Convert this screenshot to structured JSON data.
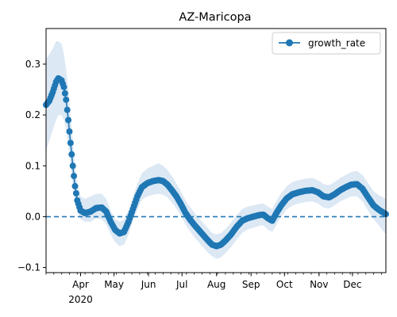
{
  "chart_data": {
    "type": "line",
    "title": "AZ-Maricopa",
    "xlabel": "",
    "ylabel": "",
    "x_range": [
      "2020-03-01",
      "2020-12-31"
    ],
    "ylim": [
      -0.11,
      0.37
    ],
    "y_ticks": [
      -0.1,
      0.0,
      0.1,
      0.2,
      0.3
    ],
    "y_tick_labels": [
      "−0.1",
      "0.0",
      "0.1",
      "0.2",
      "0.3"
    ],
    "x_ticks": [
      {
        "date": "2020-04-01",
        "label": "Apr",
        "sublabel": "2020"
      },
      {
        "date": "2020-05-01",
        "label": "May"
      },
      {
        "date": "2020-06-01",
        "label": "Jun"
      },
      {
        "date": "2020-07-01",
        "label": "Jul"
      },
      {
        "date": "2020-08-01",
        "label": "Aug"
      },
      {
        "date": "2020-09-01",
        "label": "Sep"
      },
      {
        "date": "2020-10-01",
        "label": "Oct"
      },
      {
        "date": "2020-11-01",
        "label": "Nov"
      },
      {
        "date": "2020-12-01",
        "label": "Dec"
      }
    ],
    "grid": false,
    "legend_position": "top-right",
    "reference_line": {
      "y": 0.0,
      "style": "dashed"
    },
    "series": [
      {
        "name": "growth_rate",
        "color": "#1f77b4",
        "band_color": "#dce8f4",
        "points": [
          [
            "2020-03-01",
            0.22,
            0.13,
            0.31
          ],
          [
            "2020-03-04",
            0.228,
            0.15,
            0.32
          ],
          [
            "2020-03-07",
            0.245,
            0.17,
            0.33
          ],
          [
            "2020-03-10",
            0.265,
            0.19,
            0.345
          ],
          [
            "2020-03-12",
            0.272,
            0.2,
            0.345
          ],
          [
            "2020-03-15",
            0.268,
            0.2,
            0.34
          ],
          [
            "2020-03-17",
            0.255,
            0.19,
            0.32
          ],
          [
            "2020-03-19",
            0.23,
            0.17,
            0.29
          ],
          [
            "2020-03-21",
            0.19,
            0.14,
            0.25
          ],
          [
            "2020-03-23",
            0.145,
            0.1,
            0.2
          ],
          [
            "2020-03-25",
            0.1,
            0.06,
            0.15
          ],
          [
            "2020-03-27",
            0.06,
            0.03,
            0.1
          ],
          [
            "2020-03-29",
            0.032,
            0.01,
            0.065
          ],
          [
            "2020-04-01",
            0.012,
            -0.005,
            0.04
          ],
          [
            "2020-04-05",
            0.007,
            -0.01,
            0.035
          ],
          [
            "2020-04-10",
            0.01,
            -0.01,
            0.04
          ],
          [
            "2020-04-15",
            0.017,
            -0.003,
            0.045
          ],
          [
            "2020-04-20",
            0.018,
            -0.005,
            0.045
          ],
          [
            "2020-04-24",
            0.01,
            -0.015,
            0.035
          ],
          [
            "2020-04-28",
            -0.01,
            -0.035,
            0.012
          ],
          [
            "2020-05-02",
            -0.026,
            -0.05,
            -0.005
          ],
          [
            "2020-05-06",
            -0.033,
            -0.058,
            -0.01
          ],
          [
            "2020-05-10",
            -0.03,
            -0.055,
            -0.006
          ],
          [
            "2020-05-14",
            -0.01,
            -0.035,
            0.013
          ],
          [
            "2020-05-18",
            0.015,
            -0.008,
            0.04
          ],
          [
            "2020-05-22",
            0.04,
            0.015,
            0.065
          ],
          [
            "2020-05-26",
            0.058,
            0.033,
            0.085
          ],
          [
            "2020-05-31",
            0.066,
            0.04,
            0.095
          ],
          [
            "2020-06-05",
            0.07,
            0.043,
            0.1
          ],
          [
            "2020-06-10",
            0.072,
            0.045,
            0.105
          ],
          [
            "2020-06-14",
            0.07,
            0.043,
            0.1
          ],
          [
            "2020-06-18",
            0.063,
            0.038,
            0.092
          ],
          [
            "2020-06-22",
            0.052,
            0.028,
            0.08
          ],
          [
            "2020-06-26",
            0.04,
            0.016,
            0.065
          ],
          [
            "2020-06-30",
            0.025,
            0.002,
            0.05
          ],
          [
            "2020-07-04",
            0.008,
            -0.015,
            0.033
          ],
          [
            "2020-07-08",
            -0.005,
            -0.028,
            0.02
          ],
          [
            "2020-07-12",
            -0.016,
            -0.04,
            0.008
          ],
          [
            "2020-07-16",
            -0.026,
            -0.05,
            -0.002
          ],
          [
            "2020-07-20",
            -0.036,
            -0.06,
            -0.012
          ],
          [
            "2020-07-24",
            -0.046,
            -0.07,
            -0.022
          ],
          [
            "2020-07-28",
            -0.055,
            -0.078,
            -0.032
          ],
          [
            "2020-08-01",
            -0.058,
            -0.083,
            -0.035
          ],
          [
            "2020-08-05",
            -0.055,
            -0.08,
            -0.032
          ],
          [
            "2020-08-09",
            -0.047,
            -0.072,
            -0.024
          ],
          [
            "2020-08-14",
            -0.035,
            -0.06,
            -0.012
          ],
          [
            "2020-08-19",
            -0.02,
            -0.045,
            0.003
          ],
          [
            "2020-08-24",
            -0.008,
            -0.032,
            0.015
          ],
          [
            "2020-08-29",
            -0.003,
            -0.025,
            0.02
          ],
          [
            "2020-09-03",
            0.0,
            -0.022,
            0.022
          ],
          [
            "2020-09-08",
            0.003,
            -0.018,
            0.025
          ],
          [
            "2020-09-12",
            0.004,
            -0.017,
            0.026
          ],
          [
            "2020-09-16",
            -0.003,
            -0.025,
            0.02
          ],
          [
            "2020-09-20",
            -0.008,
            -0.03,
            0.015
          ],
          [
            "2020-09-24",
            0.008,
            -0.015,
            0.032
          ],
          [
            "2020-09-28",
            0.022,
            0.0,
            0.046
          ],
          [
            "2020-10-03",
            0.036,
            0.014,
            0.06
          ],
          [
            "2020-10-08",
            0.044,
            0.022,
            0.068
          ],
          [
            "2020-10-14",
            0.048,
            0.026,
            0.072
          ],
          [
            "2020-10-20",
            0.051,
            0.029,
            0.075
          ],
          [
            "2020-10-26",
            0.052,
            0.03,
            0.076
          ],
          [
            "2020-10-31",
            0.048,
            0.026,
            0.072
          ],
          [
            "2020-11-05",
            0.04,
            0.018,
            0.064
          ],
          [
            "2020-11-10",
            0.038,
            0.016,
            0.062
          ],
          [
            "2020-11-15",
            0.044,
            0.022,
            0.068
          ],
          [
            "2020-11-20",
            0.052,
            0.03,
            0.076
          ],
          [
            "2020-11-25",
            0.058,
            0.035,
            0.082
          ],
          [
            "2020-11-30",
            0.063,
            0.04,
            0.088
          ],
          [
            "2020-12-05",
            0.064,
            0.04,
            0.09
          ],
          [
            "2020-12-10",
            0.055,
            0.03,
            0.082
          ],
          [
            "2020-12-15",
            0.038,
            0.012,
            0.066
          ],
          [
            "2020-12-20",
            0.022,
            -0.005,
            0.05
          ],
          [
            "2020-12-25",
            0.013,
            -0.018,
            0.042
          ],
          [
            "2020-12-31",
            0.005,
            -0.035,
            0.035
          ]
        ]
      }
    ]
  }
}
